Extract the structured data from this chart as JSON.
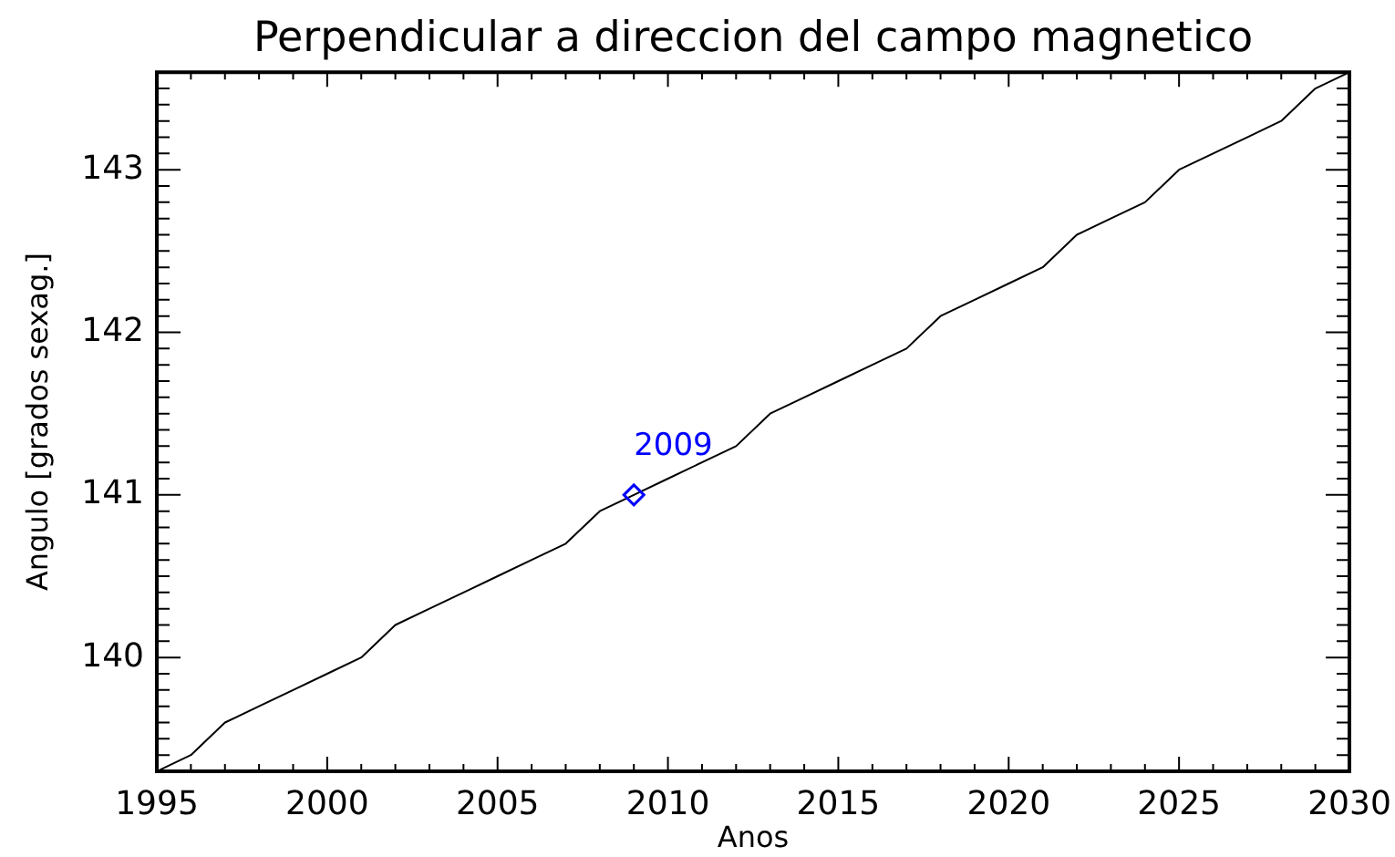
{
  "chart_data": {
    "type": "line",
    "title": "Perpendicular a direccion del campo magnetico",
    "xlabel": "Anos",
    "ylabel": "Angulo [grados sexag.]",
    "x": [
      1995,
      1996,
      1997,
      1998,
      1999,
      2000,
      2001,
      2002,
      2003,
      2004,
      2005,
      2006,
      2007,
      2008,
      2009,
      2010,
      2011,
      2012,
      2013,
      2014,
      2015,
      2016,
      2017,
      2018,
      2019,
      2020,
      2021,
      2022,
      2023,
      2024,
      2025,
      2026,
      2027,
      2028,
      2029,
      2030
    ],
    "series": [
      {
        "color": "#000000",
        "values": [
          139.3,
          139.4,
          139.6,
          139.7,
          139.8,
          139.9,
          140.0,
          140.2,
          140.3,
          140.4,
          140.5,
          140.6,
          140.7,
          140.9,
          141.0,
          141.1,
          141.2,
          141.3,
          141.5,
          141.6,
          141.7,
          141.8,
          141.9,
          142.1,
          142.2,
          142.3,
          142.4,
          142.6,
          142.7,
          142.8,
          143.0,
          143.1,
          143.2,
          143.3,
          143.5,
          143.6
        ]
      },
      {
        "type": "scatter",
        "color": "#0000ff",
        "marker": "diamond",
        "x": [
          2009
        ],
        "values": [
          141.0
        ]
      }
    ],
    "annotations": [
      {
        "text": "2009",
        "x": 2009,
        "y": 141.0
      }
    ],
    "xlim": [
      1995,
      2030
    ],
    "xticks": [
      1995,
      {
        "value": 1996,
        "label": null
      },
      {
        "value": 1997,
        "label": null
      },
      {
        "value": 1998,
        "label": null
      },
      {
        "value": 1999,
        "label": null
      },
      2000,
      {
        "value": 2001,
        "label": null
      },
      {
        "value": 2002,
        "label": null
      },
      {
        "value": 2003,
        "label": null
      },
      {
        "value": 2004,
        "label": null
      },
      2005,
      {
        "value": 2006,
        "label": null
      },
      {
        "value": 2007,
        "label": null
      },
      {
        "value": 2008,
        "label": null
      },
      {
        "value": 2009,
        "label": null
      },
      2010,
      {
        "value": 2011,
        "label": null
      },
      {
        "value": 2012,
        "label": null
      },
      {
        "value": 2013,
        "label": null
      },
      {
        "value": 2014,
        "label": null
      },
      2015,
      {
        "value": 2016,
        "label": null
      },
      {
        "value": 2017,
        "label": null
      },
      {
        "value": 2018,
        "label": null
      },
      {
        "value": 2019,
        "label": null
      },
      2020,
      {
        "value": 2021,
        "label": null
      },
      {
        "value": 2022,
        "label": null
      },
      {
        "value": 2023,
        "label": null
      },
      {
        "value": 2024,
        "label": null
      },
      2025,
      {
        "value": 2026,
        "label": null
      },
      {
        "value": 2027,
        "label": null
      },
      {
        "value": 2028,
        "label": null
      },
      {
        "value": 2029,
        "label": null
      },
      2030
    ],
    "ylim": [
      139.3,
      143.6
    ],
    "yticks": [
      {
        "value": 139.3,
        "label": null
      },
      {
        "value": 139.4,
        "label": null
      },
      {
        "value": 139.5,
        "label": null
      },
      {
        "value": 139.6,
        "label": null
      },
      {
        "value": 139.7,
        "label": null
      },
      {
        "value": 139.8,
        "label": null
      },
      {
        "value": 139.9,
        "label": null
      },
      140,
      {
        "value": 140.1,
        "label": null
      },
      {
        "value": 140.2,
        "label": null
      },
      {
        "value": 140.3,
        "label": null
      },
      {
        "value": 140.4,
        "label": null
      },
      {
        "value": 140.5,
        "label": null
      },
      {
        "value": 140.6,
        "label": null
      },
      {
        "value": 140.7,
        "label": null
      },
      {
        "value": 140.8,
        "label": null
      },
      {
        "value": 140.9,
        "label": null
      },
      141,
      {
        "value": 141.1,
        "label": null
      },
      {
        "value": 141.2,
        "label": null
      },
      {
        "value": 141.3,
        "label": null
      },
      {
        "value": 141.4,
        "label": null
      },
      {
        "value": 141.5,
        "label": null
      },
      {
        "value": 141.6,
        "label": null
      },
      {
        "value": 141.7,
        "label": null
      },
      {
        "value": 141.8,
        "label": null
      },
      {
        "value": 141.9,
        "label": null
      },
      142,
      {
        "value": 142.1,
        "label": null
      },
      {
        "value": 142.2,
        "label": null
      },
      {
        "value": 142.3,
        "label": null
      },
      {
        "value": 142.4,
        "label": null
      },
      {
        "value": 142.5,
        "label": null
      },
      {
        "value": 142.6,
        "label": null
      },
      {
        "value": 142.7,
        "label": null
      },
      {
        "value": 142.8,
        "label": null
      },
      {
        "value": 142.9,
        "label": null
      },
      143,
      {
        "value": 143.1,
        "label": null
      },
      {
        "value": 143.2,
        "label": null
      },
      {
        "value": 143.3,
        "label": null
      },
      {
        "value": 143.4,
        "label": null
      },
      {
        "value": 143.5,
        "label": null
      },
      {
        "value": 143.6,
        "label": null
      }
    ]
  }
}
